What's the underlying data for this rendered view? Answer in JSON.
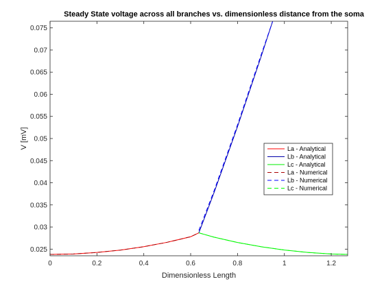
{
  "chart_data": {
    "type": "line",
    "title": "Steady State voltage across all branches vs. dimensionless distance from the soma",
    "xlabel": "Dimensionless Length",
    "ylabel": "V [mV]",
    "xlim": [
      0,
      1.27
    ],
    "ylim": [
      0.0235,
      0.0765
    ],
    "xticks": [
      0,
      0.2,
      0.4,
      0.6,
      0.8,
      1,
      1.2
    ],
    "xtick_labels": [
      "0",
      "0.2",
      "0.4",
      "0.6",
      "0.8",
      "1",
      "1.2"
    ],
    "yticks": [
      0.025,
      0.03,
      0.035,
      0.04,
      0.045,
      0.05,
      0.055,
      0.06,
      0.065,
      0.07,
      0.075
    ],
    "ytick_labels": [
      "0.025",
      "0.03",
      "0.035",
      "0.04",
      "0.045",
      "0.05",
      "0.055",
      "0.06",
      "0.065",
      "0.07",
      "0.075"
    ],
    "legend_position": "center-right",
    "grid": false,
    "series": [
      {
        "name": "La - Analytical",
        "color": "#ff0000",
        "dash": "solid",
        "x": [
          0,
          0.1,
          0.2,
          0.3,
          0.4,
          0.5,
          0.6,
          0.635
        ],
        "y": [
          0.0238,
          0.0239,
          0.02425,
          0.02478,
          0.02555,
          0.02655,
          0.0278,
          0.02868
        ]
      },
      {
        "name": "Lb - Analytical",
        "color": "#0000aa",
        "dash": "solid",
        "x": [
          0.635,
          0.7,
          0.8,
          0.9,
          0.95
        ],
        "y": [
          0.02868,
          0.0378,
          0.0527,
          0.0684,
          0.0765
        ]
      },
      {
        "name": "Lc - Analytical",
        "color": "#00ee00",
        "dash": "solid",
        "x": [
          0.635,
          0.7,
          0.8,
          0.9,
          1.0,
          1.1,
          1.2,
          1.27
        ],
        "y": [
          0.02868,
          0.0277,
          0.0265,
          0.02555,
          0.0248,
          0.02425,
          0.0239,
          0.0238
        ]
      },
      {
        "name": "La - Numerical",
        "color": "#aa0000",
        "dash": "dashed",
        "x": [
          0,
          0.1,
          0.2,
          0.3,
          0.4,
          0.5,
          0.6,
          0.635
        ],
        "y": [
          0.0238,
          0.0239,
          0.02425,
          0.02478,
          0.02555,
          0.02655,
          0.0278,
          0.02868
        ]
      },
      {
        "name": "Lb - Numerical",
        "color": "#0000ff",
        "dash": "dashed",
        "x": [
          0.635,
          0.7,
          0.8,
          0.9,
          0.95
        ],
        "y": [
          0.0292,
          0.0382,
          0.0531,
          0.0688,
          0.0765
        ]
      },
      {
        "name": "Lc - Numerical",
        "color": "#00ff00",
        "dash": "dashed",
        "x": [
          0.635,
          0.7,
          0.8,
          0.9,
          1.0,
          1.1,
          1.2,
          1.27
        ],
        "y": [
          0.02868,
          0.0277,
          0.0265,
          0.02555,
          0.0248,
          0.02425,
          0.0239,
          0.0238
        ]
      }
    ]
  }
}
